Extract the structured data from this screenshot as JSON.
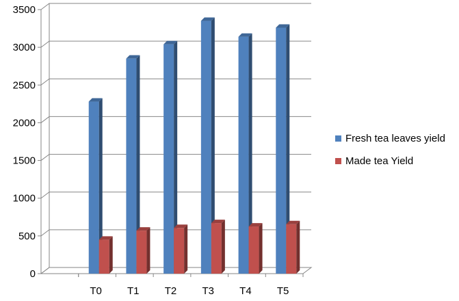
{
  "chart_data": {
    "type": "bar",
    "categories": [
      "T0",
      "T1",
      "T2",
      "T3",
      "T4",
      "T5"
    ],
    "series": [
      {
        "name": "Fresh tea leaves yield",
        "values": [
          2280,
          2850,
          3040,
          3350,
          3140,
          3260
        ],
        "color": "#4F81BD"
      },
      {
        "name": "Made tea Yield",
        "values": [
          450,
          570,
          605,
          670,
          625,
          655
        ],
        "color": "#C0504D"
      }
    ],
    "y_ticks": [
      "0",
      "500",
      "1000",
      "1500",
      "2000",
      "2500",
      "3000",
      "3500"
    ],
    "ylim": [
      0,
      3500
    ],
    "grid": true,
    "legend_position": "right",
    "style": "3d-clustered-column"
  }
}
